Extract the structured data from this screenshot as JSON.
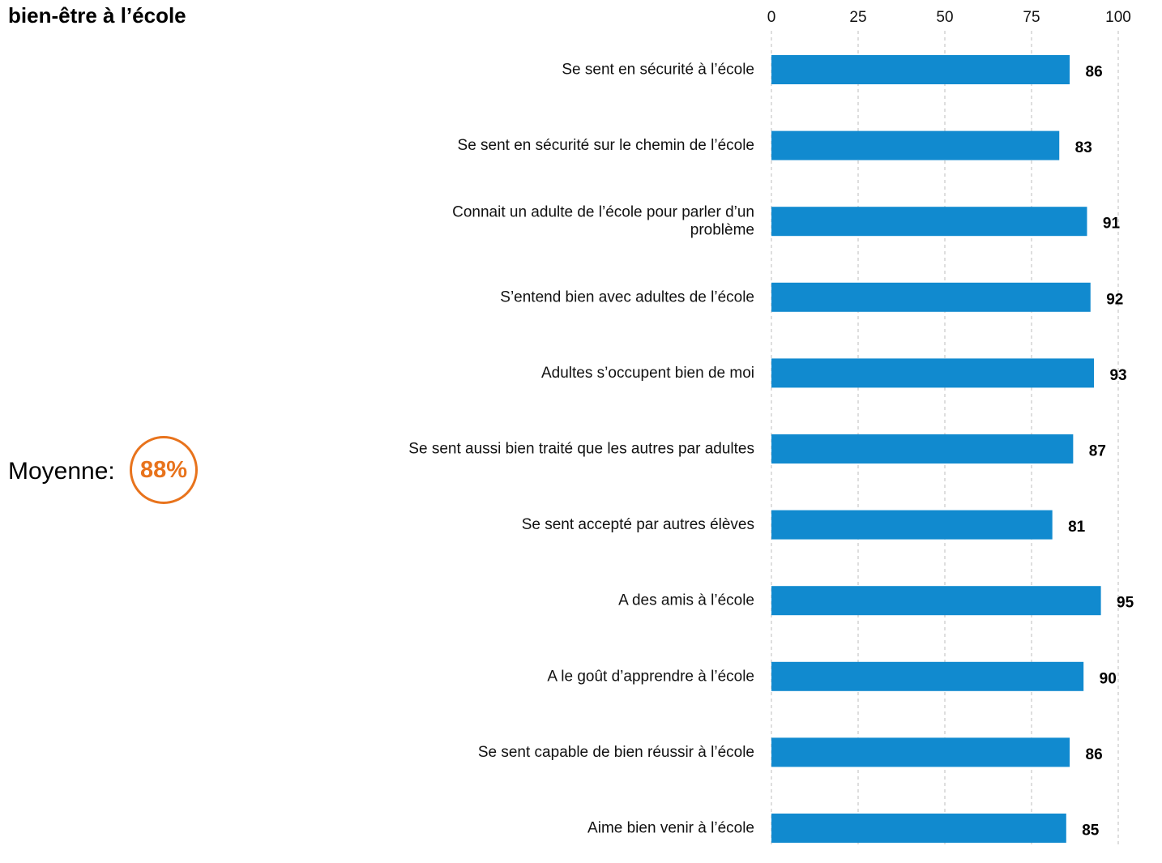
{
  "page": {
    "average_label": "Moyenne:",
    "average_value": "88%"
  },
  "chart_data": {
    "type": "bar",
    "orientation": "horizontal",
    "title": "bien-être à l’école",
    "xlabel": "",
    "ylabel": "",
    "xlim": [
      0,
      100
    ],
    "ticks": [
      "0",
      "25",
      "50",
      "75",
      "100"
    ],
    "grid": true,
    "categories": [
      "Se sent en sécurité à l’école",
      "Se sent en sécurité sur le chemin de l’école",
      [
        "Connait un adulte de l’école pour parler d’un",
        "problème"
      ],
      "S’entend bien avec adultes de l’école",
      "Adultes s’occupent bien de moi",
      "Se sent aussi bien traité que les autres par adultes",
      "Se sent accepté par autres élèves",
      "A des amis à l’école",
      "A le goût d’apprendre à l’école",
      "Se sent capable de bien réussir à l’école",
      "Aime bien venir à l’école"
    ],
    "values": [
      86,
      83,
      91,
      92,
      93,
      87,
      81,
      95,
      90,
      86,
      85
    ],
    "colors": {
      "bar": "#118acf",
      "grid": "#c8c8c8",
      "accent": "#e8731c"
    }
  }
}
